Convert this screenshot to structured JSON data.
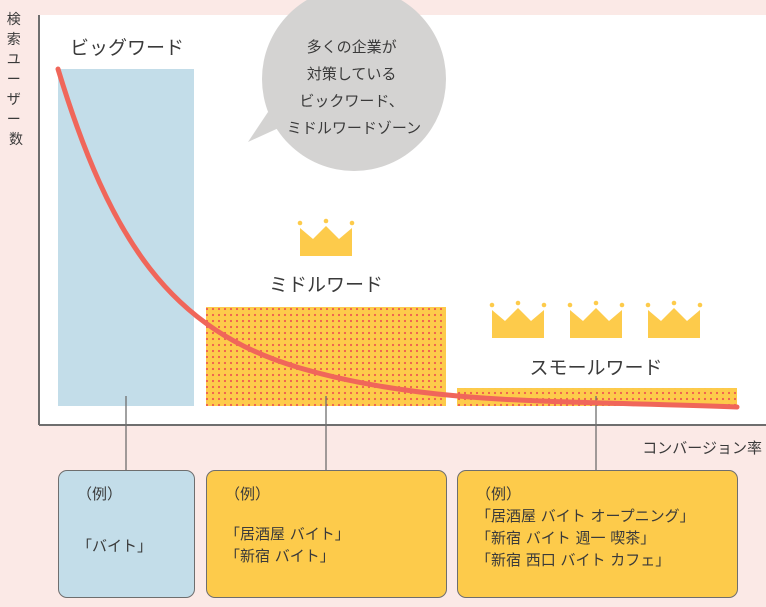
{
  "y_axis_label": [
    "検",
    "索",
    "ユ",
    "ー",
    "ザ",
    "ー",
    "数"
  ],
  "x_axis_label": "コンバージョン率",
  "bubble_lines": [
    "多くの企業が",
    "対策している",
    "ビックワード、",
    "ミドルワードゾーン"
  ],
  "zones": {
    "big": {
      "label": "ビッグワード",
      "crowns": 0
    },
    "middle": {
      "label": "ミドルワード",
      "crowns": 1
    },
    "small": {
      "label": "スモールワード",
      "crowns": 3
    }
  },
  "examples": {
    "big": {
      "label": "（例）",
      "lines": [
        "「バイト」"
      ]
    },
    "middle": {
      "label": "（例）",
      "lines": [
        "「居酒屋 バイト」",
        "「新宿 バイト」"
      ]
    },
    "small": {
      "label": "（例）",
      "lines": [
        "「居酒屋 バイト オープニング」",
        "「新宿 バイト 週一 喫茶」",
        "「新宿 西口 バイト カフェ」"
      ]
    }
  },
  "colors": {
    "curve": "#f0665a",
    "big_zone": "#c3dde9",
    "middle_small_zone": "#fdcb4b",
    "crown": "#fdcb4b",
    "dots": "#ef5b4f",
    "bubble": "#d4d3d2",
    "background": "#fbe9e6"
  }
}
